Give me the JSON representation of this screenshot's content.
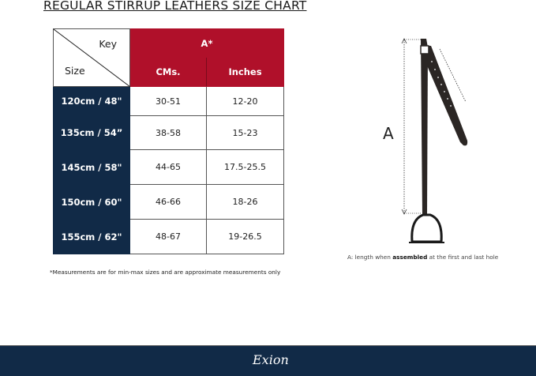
{
  "title": "REGULAR STIRRUP LEATHERS  SIZE CHART",
  "table": {
    "corner_key": "Key",
    "corner_size": "Size",
    "group_header": "A*",
    "columns": [
      "CMs.",
      "Inches"
    ],
    "rows": [
      {
        "size": "120cm / 48\"",
        "cms": "30-51",
        "inches": "12-20"
      },
      {
        "size": "135cm / 54”",
        "cms": "38-58",
        "inches": "15-23"
      },
      {
        "size": "145cm / 58\"",
        "cms": "44-65",
        "inches": "17.5-25.5"
      },
      {
        "size": "150cm / 60\"",
        "cms": "46-66",
        "inches": "18-26"
      },
      {
        "size": "155cm / 62\"",
        "cms": "48-67",
        "inches": "19-26.5"
      }
    ]
  },
  "footnote": "*Measurements are for min-max sizes and are approximate measurements only",
  "diagram": {
    "label": "A",
    "caption_pre": "A: length when ",
    "caption_bold": "assembled",
    "caption_post": " at the first and last hole"
  },
  "footer": {
    "brand": "Exion"
  },
  "colors": {
    "header_red": "#b0102a",
    "size_navy": "#112a47",
    "footer_navy": "#112a47"
  }
}
